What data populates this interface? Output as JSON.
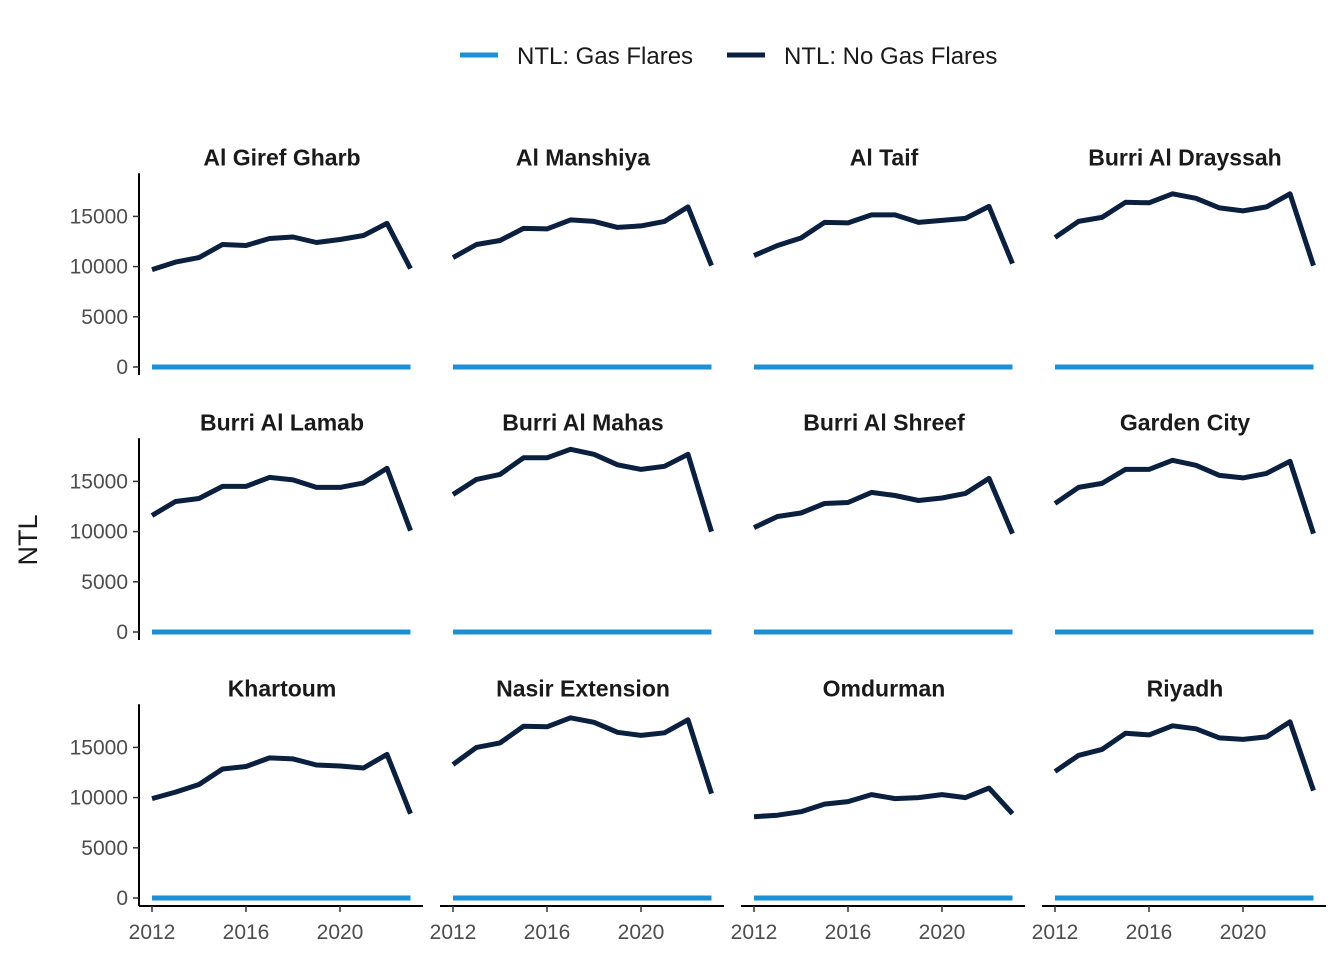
{
  "chart_data": {
    "type": "line",
    "ylabel": "NTL",
    "xlabel": "",
    "legend_position": "top",
    "years": [
      2012,
      2013,
      2014,
      2015,
      2016,
      2017,
      2018,
      2019,
      2020,
      2021,
      2022,
      2023
    ],
    "x_ticks": [
      "2012",
      "2016",
      "2020"
    ],
    "ylim": [
      0,
      18500
    ],
    "y_ticks": [
      "0",
      "5000",
      "10000",
      "15000"
    ],
    "series_meta": [
      {
        "key": "gas",
        "name": "NTL: Gas Flares",
        "color": "#1f8fd4"
      },
      {
        "key": "nogas",
        "name": "NTL: No Gas Flares",
        "color": "#0b1f3f"
      }
    ],
    "panels": [
      {
        "title": "Al Giref Gharb",
        "gas": [
          0,
          0,
          0,
          0,
          0,
          0,
          0,
          0,
          0,
          0,
          0,
          0
        ],
        "nogas": [
          9700,
          10450,
          10900,
          12200,
          12100,
          12800,
          12950,
          12400,
          12700,
          13100,
          14300,
          9800
        ]
      },
      {
        "title": "Al Manshiya",
        "gas": [
          0,
          0,
          0,
          0,
          0,
          0,
          0,
          0,
          0,
          0,
          0,
          0
        ],
        "nogas": [
          10900,
          12200,
          12600,
          13800,
          13750,
          14650,
          14500,
          13900,
          14050,
          14500,
          15950,
          10100
        ]
      },
      {
        "title": "Al Taif",
        "gas": [
          0,
          0,
          0,
          0,
          0,
          0,
          0,
          0,
          0,
          0,
          0,
          0
        ],
        "nogas": [
          11100,
          12100,
          12850,
          14400,
          14350,
          15150,
          15150,
          14400,
          14600,
          14800,
          16000,
          10300
        ]
      },
      {
        "title": "Burri Al Drayssah",
        "gas": [
          0,
          0,
          0,
          0,
          0,
          0,
          0,
          0,
          0,
          0,
          0,
          0
        ],
        "nogas": [
          12900,
          14500,
          14900,
          16400,
          16350,
          17250,
          16800,
          15850,
          15550,
          15950,
          17250,
          10100
        ]
      },
      {
        "title": "Burri Al Lamab",
        "gas": [
          0,
          0,
          0,
          0,
          0,
          0,
          0,
          0,
          0,
          0,
          0,
          0
        ],
        "nogas": [
          11600,
          13000,
          13300,
          14500,
          14500,
          15400,
          15150,
          14400,
          14400,
          14850,
          16300,
          10100
        ]
      },
      {
        "title": "Burri Al Mahas",
        "gas": [
          0,
          0,
          0,
          0,
          0,
          0,
          0,
          0,
          0,
          0,
          0,
          0
        ],
        "nogas": [
          13700,
          15200,
          15700,
          17350,
          17350,
          18200,
          17700,
          16650,
          16200,
          16500,
          17700,
          10000
        ]
      },
      {
        "title": "Burri Al Shreef",
        "gas": [
          0,
          0,
          0,
          0,
          0,
          0,
          0,
          0,
          0,
          0,
          0,
          0
        ],
        "nogas": [
          10400,
          11500,
          11850,
          12800,
          12900,
          13900,
          13600,
          13100,
          13350,
          13800,
          15300,
          9800
        ]
      },
      {
        "title": "Garden City",
        "gas": [
          0,
          0,
          0,
          0,
          0,
          0,
          0,
          0,
          0,
          0,
          0,
          0
        ],
        "nogas": [
          12800,
          14400,
          14800,
          16200,
          16200,
          17100,
          16600,
          15600,
          15350,
          15800,
          17000,
          9800
        ]
      },
      {
        "title": "Khartoum",
        "gas": [
          0,
          0,
          0,
          0,
          0,
          0,
          0,
          0,
          0,
          0,
          0,
          0
        ],
        "nogas": [
          9900,
          10550,
          11300,
          12850,
          13100,
          13950,
          13850,
          13250,
          13150,
          12950,
          14300,
          8400
        ]
      },
      {
        "title": "Nasir Extension",
        "gas": [
          0,
          0,
          0,
          0,
          0,
          0,
          0,
          0,
          0,
          0,
          0,
          0
        ],
        "nogas": [
          13300,
          15000,
          15450,
          17100,
          17050,
          17950,
          17500,
          16500,
          16200,
          16450,
          17750,
          10400
        ]
      },
      {
        "title": "Omdurman",
        "gas": [
          0,
          0,
          0,
          0,
          0,
          0,
          0,
          0,
          0,
          0,
          0,
          0
        ],
        "nogas": [
          8100,
          8250,
          8600,
          9350,
          9600,
          10300,
          9900,
          10000,
          10300,
          10000,
          10950,
          8400
        ]
      },
      {
        "title": "Riyadh",
        "gas": [
          0,
          0,
          0,
          0,
          0,
          0,
          0,
          0,
          0,
          0,
          0,
          0
        ],
        "nogas": [
          12600,
          14200,
          14800,
          16400,
          16250,
          17150,
          16850,
          15950,
          15800,
          16050,
          17550,
          10700
        ]
      }
    ]
  }
}
